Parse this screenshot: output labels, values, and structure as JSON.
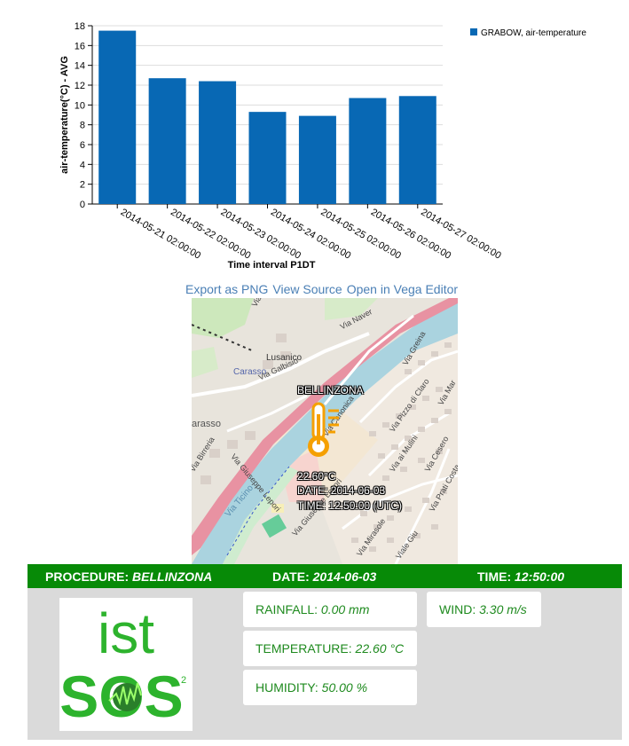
{
  "chart_data": {
    "type": "bar",
    "categories": [
      "2014-05-21 02:00:00",
      "2014-05-22 02:00:00",
      "2014-05-23 02:00:00",
      "2014-05-24 02:00:00",
      "2014-05-25 02:00:00",
      "2014-05-26 02:00:00",
      "2014-05-27 02:00:00"
    ],
    "series": [
      {
        "name": "GRABOW, air-temperature",
        "values": [
          17.5,
          12.7,
          12.4,
          9.3,
          8.9,
          10.7,
          10.9
        ]
      }
    ],
    "xlabel": "Time interval P1DT",
    "ylabel": "air-temperature(°C) - AVG",
    "ylim": [
      0,
      18
    ],
    "yticks": [
      0,
      2,
      4,
      6,
      8,
      10,
      12,
      14,
      16,
      18
    ],
    "grid": true,
    "legend_position": "top-right",
    "bar_color": "#0868b4"
  },
  "vega_actions": [
    "Export as PNG",
    "View Source",
    "Open in Vega Editor"
  ],
  "map": {
    "station_label": "BELLINZONA",
    "readout": [
      "22.60°C",
      "DATE: 2014-06-03",
      "TIME: 12:50:00 (UTC)"
    ],
    "icon": "thermometer-icon",
    "places": [
      "Lusanico",
      "Carasso",
      "arasso"
    ],
    "streets": [
      "Via Naver",
      "Via Galbisio",
      "Via Birreria",
      "Via Giuseppe Lepori",
      "Via Canonica",
      "Via Pizzo di Claro",
      "Via ai Mulini",
      "Via Cesero",
      "Via Greina",
      "Via Ticino",
      "Via Prati Costa",
      "Via Mirasole",
      "Viale Giu",
      "Via Giuseppe Lepori"
    ],
    "river": "Ticino",
    "road_shield": "2",
    "map_marks": [
      "Via",
      "Via Mar"
    ]
  },
  "panel": {
    "procedure_label": "PROCEDURE:",
    "procedure_value": "BELLINZONA",
    "date_label": "DATE:",
    "date_value": "2014-06-03",
    "time_label": "TIME:",
    "time_value": "12:50:00",
    "rainfall_label": "RAINFALL:",
    "rainfall_value": "0.00 mm",
    "wind_label": "WIND:",
    "wind_value": "3.30 m/s",
    "temperature_label": "TEMPERATURE:",
    "temperature_value": "22.60 °C",
    "humidity_label": "HUMIDITY:",
    "humidity_value": "50.00 %",
    "logo_text_top": "ist",
    "logo_text_bottom": "SOS",
    "logo_superscript": "2",
    "accent_color": "#078a07"
  }
}
